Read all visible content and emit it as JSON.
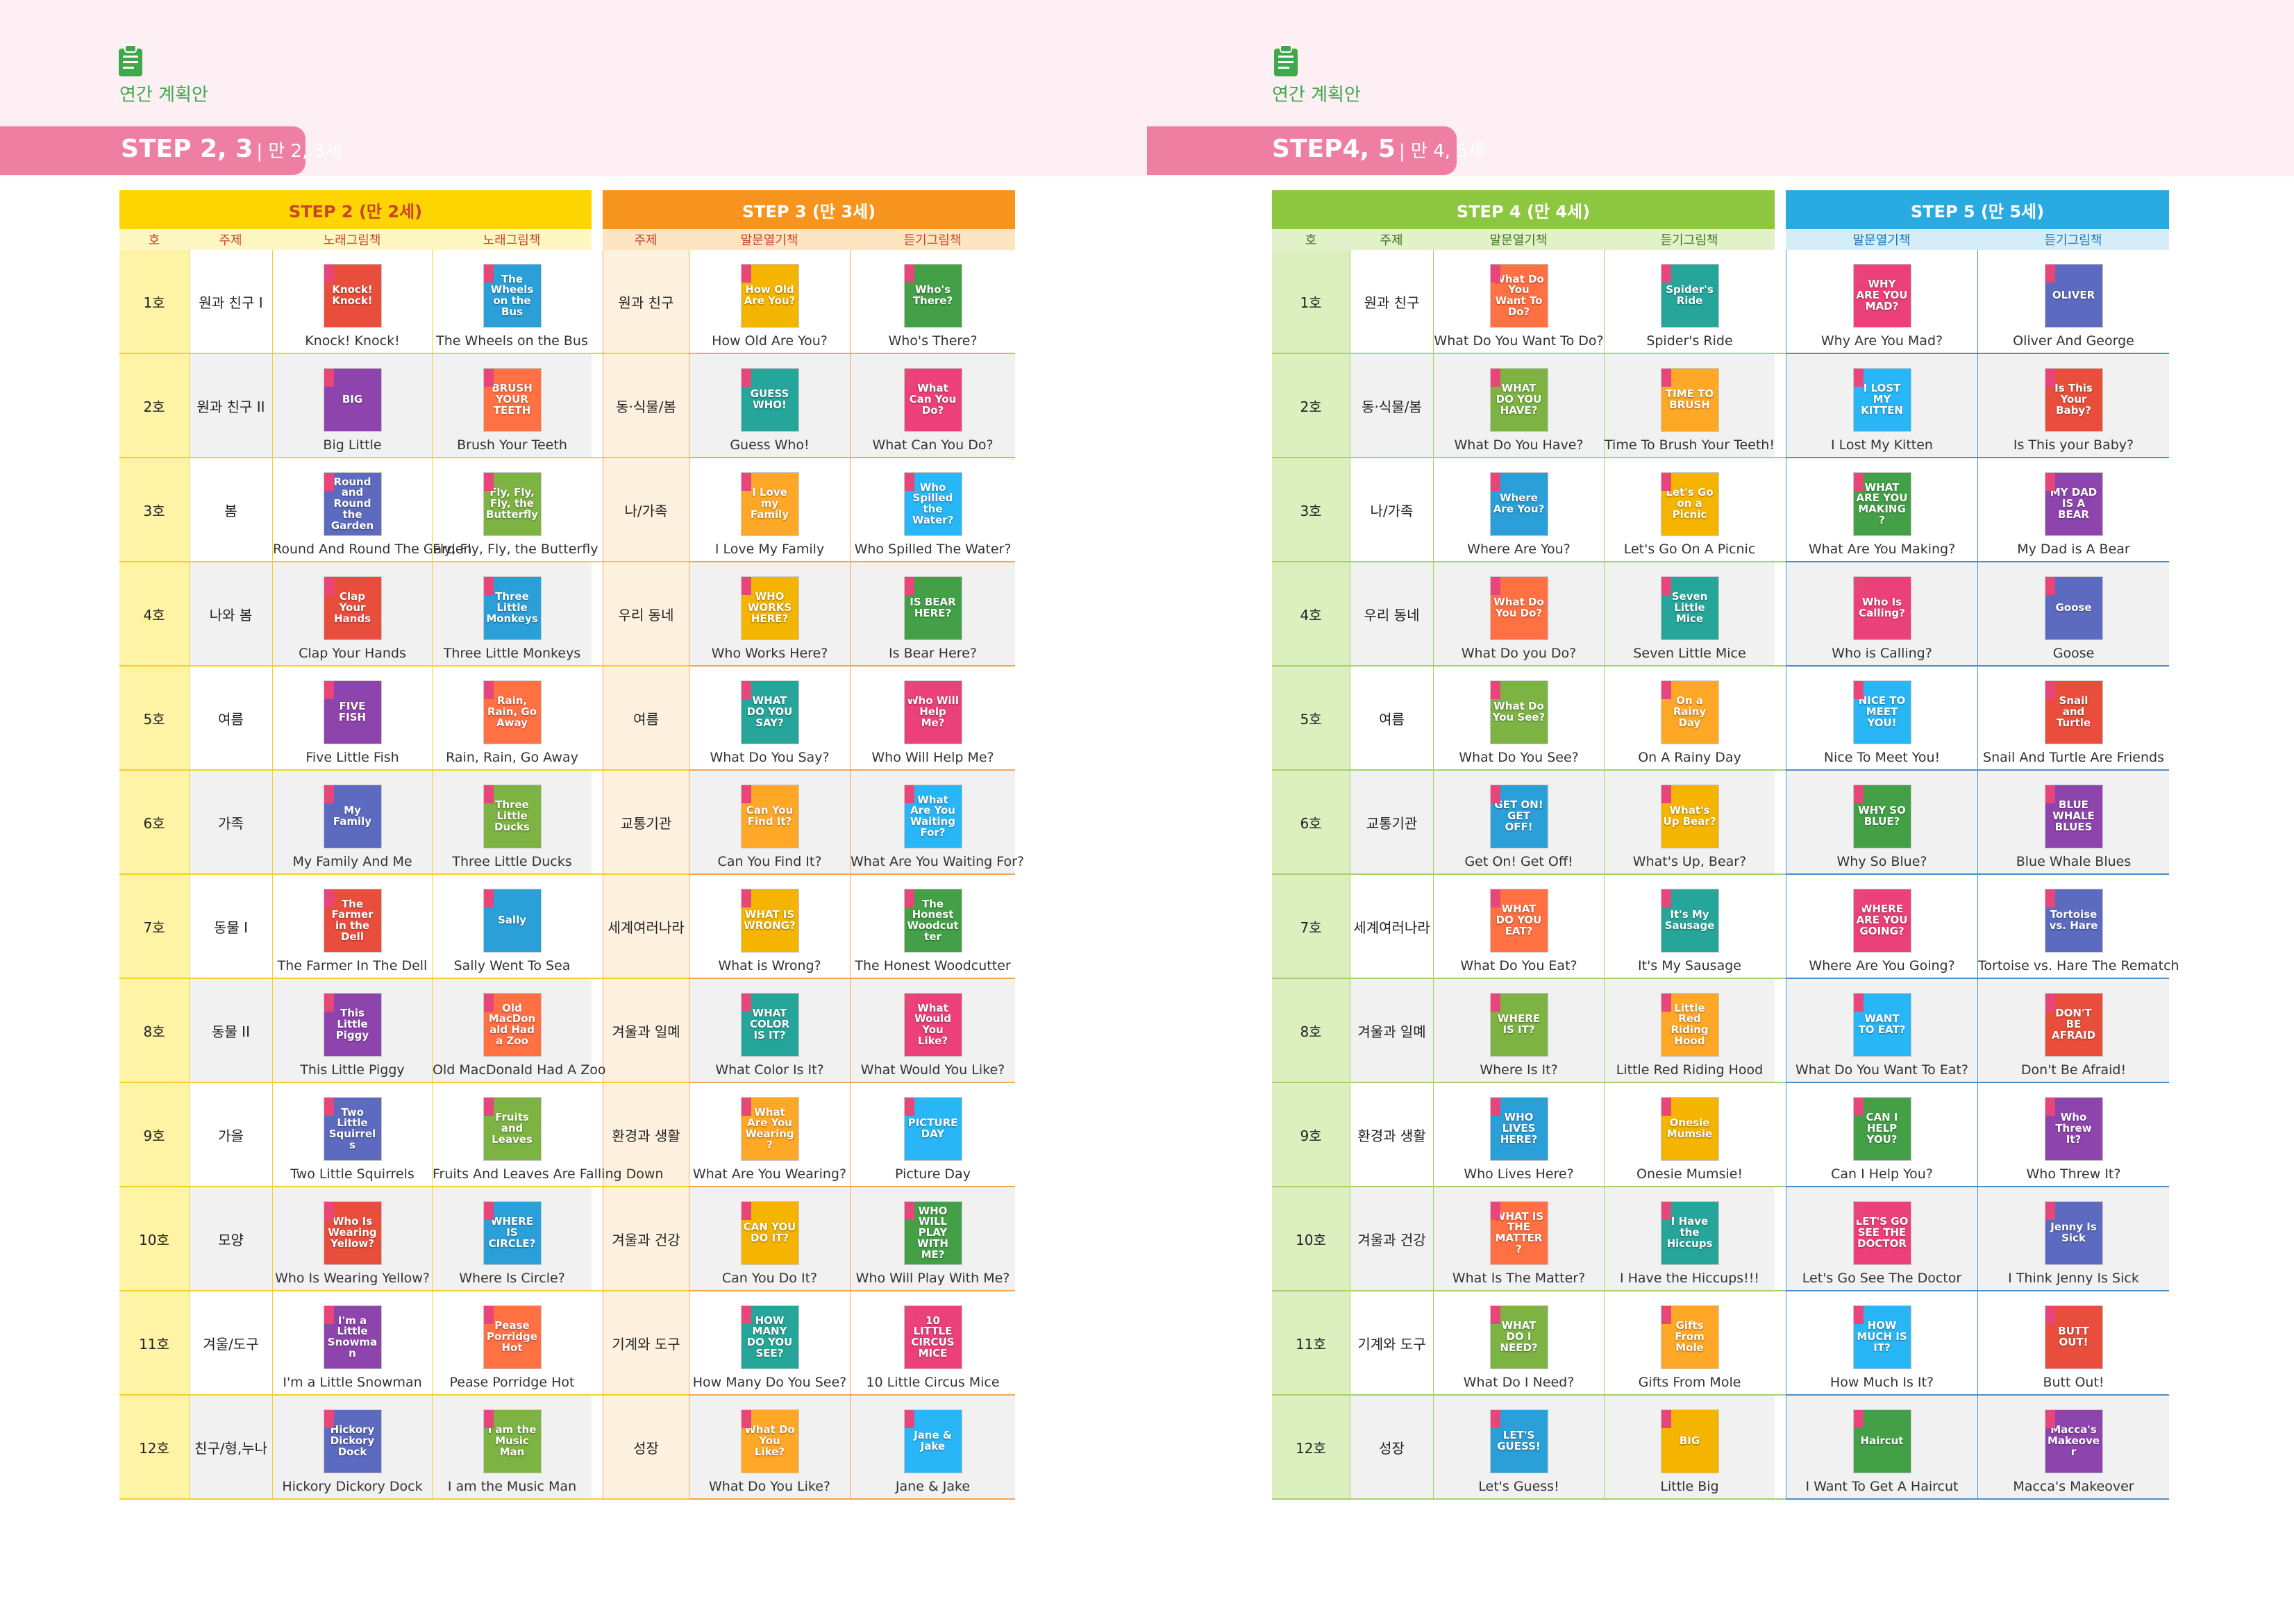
{
  "colors": {
    "step2": "#ffd500",
    "step3": "#f7941d",
    "step4": "#8dc63f",
    "step5": "#29aae1",
    "tab": "#ef7fa2",
    "header_text": "#3fa84a"
  },
  "left": {
    "section_label": "연간 계획안",
    "tab_step": "STEP 2, 3",
    "tab_age": "| 만 2, 3세",
    "groupA": "STEP 2 (만 2세)",
    "groupB": "STEP 3 (만 3세)",
    "sub": [
      "호",
      "주제",
      "노래그림책",
      "노래그림책",
      "주제",
      "말문열기책",
      "듣기그림책"
    ],
    "rows": [
      {
        "ho": "1호",
        "theme": "원과 친구 I",
        "b1": "Knock! Knock!",
        "b2": "The Wheels on the Bus",
        "theme2": "원과 친구",
        "b3": "How Old Are You?",
        "b4": "Who's There?"
      },
      {
        "ho": "2호",
        "theme": "원과 친구 II",
        "b1": "Big Little",
        "b2": "Brush Your Teeth",
        "theme2": "동·식물/봄",
        "b3": "Guess Who!",
        "b4": "What Can You Do?"
      },
      {
        "ho": "3호",
        "theme": "봄",
        "b1": "Round And Round The Garden",
        "b2": "Fly, Fly, Fly, the Butterfly",
        "theme2": "나/가족",
        "b3": "I Love My Family",
        "b4": "Who Spilled The Water?"
      },
      {
        "ho": "4호",
        "theme": "나와 봄",
        "b1": "Clap Your Hands",
        "b2": "Three Little Monkeys",
        "theme2": "우리 동네",
        "b3": "Who Works Here?",
        "b4": "Is Bear Here?"
      },
      {
        "ho": "5호",
        "theme": "여름",
        "b1": "Five Little Fish",
        "b2": "Rain, Rain, Go Away",
        "theme2": "여름",
        "b3": "What Do You Say?",
        "b4": "Who Will Help Me?"
      },
      {
        "ho": "6호",
        "theme": "가족",
        "b1": "My Family And Me",
        "b2": "Three Little Ducks",
        "theme2": "교통기관",
        "b3": "Can You Find It?",
        "b4": "What Are You Waiting For?"
      },
      {
        "ho": "7호",
        "theme": "동물 I",
        "b1": "The Farmer In The Dell",
        "b2": "Sally Went To Sea",
        "theme2": "세계여러나라",
        "b3": "What is Wrong?",
        "b4": "The Honest Woodcutter"
      },
      {
        "ho": "8호",
        "theme": "동물 II",
        "b1": "This Little Piggy",
        "b2": "Old MacDonald Had A Zoo",
        "theme2": "겨울과 일몌",
        "b3": "What Color Is It?",
        "b4": "What Would You Like?"
      },
      {
        "ho": "9호",
        "theme": "가을",
        "b1": "Two Little Squirrels",
        "b2": "Fruits And Leaves Are Falling Down",
        "theme2": "환경과 생활",
        "b3": "What Are You Wearing?",
        "b4": "Picture Day"
      },
      {
        "ho": "10호",
        "theme": "모양",
        "b1": "Who Is Wearing Yellow?",
        "b2": "Where Is Circle?",
        "theme2": "겨울과 건강",
        "b3": "Can You Do It?",
        "b4": "Who Will Play With Me?"
      },
      {
        "ho": "11호",
        "theme": "겨울/도구",
        "b1": "I'm a Little Snowman",
        "b2": "Pease Porridge Hot",
        "theme2": "기계와 도구",
        "b3": "How Many Do You See?",
        "b4": "10 Little Circus Mice"
      },
      {
        "ho": "12호",
        "theme": "친구/형,누나",
        "b1": "Hickory Dickory Dock",
        "b2": "I am the Music Man",
        "theme2": "성장",
        "b3": "What Do You Like?",
        "b4": "Jane & Jake"
      }
    ]
  },
  "right": {
    "section_label": "연간 계획안",
    "tab_step": "STEP4, 5",
    "tab_age": "| 만 4, 5세",
    "groupA": "STEP 4 (만 4세)",
    "groupB": "STEP 5 (만 5세)",
    "sub": [
      "호",
      "주제",
      "말문열기책",
      "듣기그림책",
      "말문열기책",
      "듣기그림책"
    ],
    "rows": [
      {
        "ho": "1호",
        "theme": "원과 친구",
        "b1": "What Do You Want To Do?",
        "b2": "Spider's Ride",
        "b3": "Why Are You Mad?",
        "b4": "Oliver And George"
      },
      {
        "ho": "2호",
        "theme": "동·식물/봄",
        "b1": "What Do You Have?",
        "b2": "Time To Brush Your Teeth!",
        "b3": "I Lost My Kitten",
        "b4": "Is This your Baby?"
      },
      {
        "ho": "3호",
        "theme": "나/가족",
        "b1": "Where Are You?",
        "b2": "Let's Go On A Picnic",
        "b3": "What Are You Making?",
        "b4": "My Dad is A Bear"
      },
      {
        "ho": "4호",
        "theme": "우리 동네",
        "b1": "What Do you Do?",
        "b2": "Seven Little Mice",
        "b3": "Who is Calling?",
        "b4": "Goose"
      },
      {
        "ho": "5호",
        "theme": "여름",
        "b1": "What Do You See?",
        "b2": "On A Rainy Day",
        "b3": "Nice To Meet You!",
        "b4": "Snail And Turtle Are Friends"
      },
      {
        "ho": "6호",
        "theme": "교통기관",
        "b1": "Get On! Get Off!",
        "b2": "What's Up, Bear?",
        "b3": "Why So Blue?",
        "b4": "Blue Whale Blues"
      },
      {
        "ho": "7호",
        "theme": "세계여러나라",
        "b1": "What Do You Eat?",
        "b2": "It's My Sausage",
        "b3": "Where Are You Going?",
        "b4": "Tortoise vs. Hare The Rematch"
      },
      {
        "ho": "8호",
        "theme": "겨울과 일몌",
        "b1": "Where Is It?",
        "b2": "Little Red Riding Hood",
        "b3": "What Do You Want To Eat?",
        "b4": "Don't Be Afraid!"
      },
      {
        "ho": "9호",
        "theme": "환경과 생활",
        "b1": "Who Lives Here?",
        "b2": "Onesie Mumsie!",
        "b3": "Can I Help You?",
        "b4": "Who Threw It?"
      },
      {
        "ho": "10호",
        "theme": "겨울과 건강",
        "b1": "What Is The Matter?",
        "b2": "I Have the Hiccups!!!",
        "b3": "Let's Go See The Doctor",
        "b4": "I Think Jenny Is Sick"
      },
      {
        "ho": "11호",
        "theme": "기계와 도구",
        "b1": "What Do I Need?",
        "b2": "Gifts From Mole",
        "b3": "How Much Is It?",
        "b4": "Butt Out!"
      },
      {
        "ho": "12호",
        "theme": "성장",
        "b1": "Let's Guess!",
        "b2": "Little Big",
        "b3": "I Want To Get A Haircut",
        "b4": "Macca's Makeover"
      }
    ]
  },
  "covers_left": [
    [
      "Knock! Knock!",
      "The Wheels on the Bus",
      "How Old Are You?",
      "Who's There?"
    ],
    [
      "BIG",
      "BRUSH YOUR TEETH",
      "GUESS WHO!",
      "What Can You Do?"
    ],
    [
      "Round and Round the Garden",
      "Fly, Fly, Fly, the Butterfly",
      "I Love my Family",
      "Who Spilled the Water?"
    ],
    [
      "Clap Your Hands",
      "Three Little Monkeys",
      "WHO WORKS HERE?",
      "IS BEAR HERE?"
    ],
    [
      "FIVE FISH",
      "Rain, Rain, Go Away",
      "WHAT DO YOU SAY?",
      "Who Will Help Me?"
    ],
    [
      "My Family",
      "Three Little Ducks",
      "Can You Find It?",
      "What Are You Waiting For?"
    ],
    [
      "The Farmer in the Dell",
      "Sally",
      "WHAT IS WRONG?",
      "The Honest Woodcutter"
    ],
    [
      "This Little Piggy",
      "Old MacDonald Had a Zoo",
      "WHAT COLOR IS IT?",
      "What Would You Like?"
    ],
    [
      "Two Little Squirrels",
      "Fruits and Leaves",
      "What Are You Wearing?",
      "PICTURE DAY"
    ],
    [
      "Who Is Wearing Yellow?",
      "WHERE IS CIRCLE?",
      "CAN YOU DO IT?",
      "WHO WILL PLAY WITH ME?"
    ],
    [
      "I'm a Little Snowman",
      "Pease Porridge Hot",
      "HOW MANY DO YOU SEE?",
      "10 LITTLE CIRCUS MICE"
    ],
    [
      "Hickory Dickory Dock",
      "I am the Music Man",
      "What Do You Like?",
      "Jane & Jake"
    ]
  ],
  "covers_right": [
    [
      "What Do You Want To Do?",
      "Spider's Ride",
      "WHY ARE YOU MAD?",
      "OLIVER"
    ],
    [
      "WHAT DO YOU HAVE?",
      "TIME TO BRUSH",
      "I LOST MY KITTEN",
      "Is This Your Baby?"
    ],
    [
      "Where Are You?",
      "Let's Go on a Picnic",
      "WHAT ARE YOU MAKING?",
      "MY DAD IS A BEAR"
    ],
    [
      "What Do You Do?",
      "Seven Little Mice",
      "Who Is Calling?",
      "Goose"
    ],
    [
      "What Do You See?",
      "On a Rainy Day",
      "NICE TO MEET YOU!",
      "Snail and Turtle"
    ],
    [
      "GET ON! GET OFF!",
      "What's Up Bear?",
      "WHY SO BLUE?",
      "BLUE WHALE BLUES"
    ],
    [
      "WHAT DO YOU EAT?",
      "It's My Sausage",
      "WHERE ARE YOU GOING?",
      "Tortoise vs. Hare"
    ],
    [
      "WHERE IS IT?",
      "Little Red Riding Hood",
      "WANT TO EAT?",
      "DON'T BE AFRAID"
    ],
    [
      "WHO LIVES HERE?",
      "Onesie Mumsie",
      "CAN I HELP YOU?",
      "Who Threw It?"
    ],
    [
      "WHAT IS THE MATTER?",
      "I Have the Hiccups",
      "LET'S GO SEE THE DOCTOR",
      "Jenny Is Sick"
    ],
    [
      "WHAT DO I NEED?",
      "Gifts From Mole",
      "HOW MUCH IS IT?",
      "BUTT OUT!"
    ],
    [
      "LET'S GUESS!",
      "BIG",
      "Haircut",
      "Macca's Makeover"
    ]
  ]
}
